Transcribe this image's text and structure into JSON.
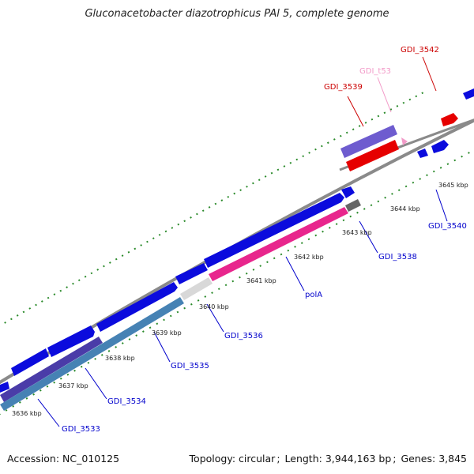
{
  "title": "Gluconacetobacter diazotrophicus PAl 5, complete genome",
  "footer": {
    "accession_label": "Accession:",
    "accession": "NC_010125",
    "topology_label": "Topology:",
    "topology": "circular",
    "length_label": "Length:",
    "length": "3,944,163 bp",
    "genes_label": "Genes:",
    "genes": "3,845"
  },
  "colors": {
    "cds_forward": "#0b0bdd",
    "cds_reverse_feature": "#1a1ae6",
    "rna": "#e8268d",
    "trna": "#f29ac8",
    "misc_red": "#e60000",
    "purple": "#6e5ccf",
    "steelblue": "#4682b4",
    "backbone": "#8a8a8a",
    "ticks": "#2a8a2a",
    "label_blue": "#0000cc",
    "label_red": "#cc0000",
    "label_pink": "#f29ac8"
  },
  "ticks": [
    "3636 kbp",
    "3637 kbp",
    "3638 kbp",
    "3639 kbp",
    "3640 kbp",
    "3641 kbp",
    "3642 kbp",
    "3643 kbp",
    "3644 kbp",
    "3645 kbp"
  ],
  "genes": [
    {
      "label": "GDI_3533",
      "color": "label_blue"
    },
    {
      "label": "GDI_3534",
      "color": "label_blue"
    },
    {
      "label": "GDI_3535",
      "color": "label_blue"
    },
    {
      "label": "GDI_3536",
      "color": "label_blue"
    },
    {
      "label": "polA",
      "color": "label_blue"
    },
    {
      "label": "GDI_3538",
      "color": "label_blue"
    },
    {
      "label": "GDI_3540",
      "color": "label_blue"
    },
    {
      "label": "GDI_3539",
      "color": "label_red"
    },
    {
      "label": "GDI_t53",
      "color": "label_pink"
    },
    {
      "label": "GDI_3542",
      "color": "label_red"
    }
  ]
}
